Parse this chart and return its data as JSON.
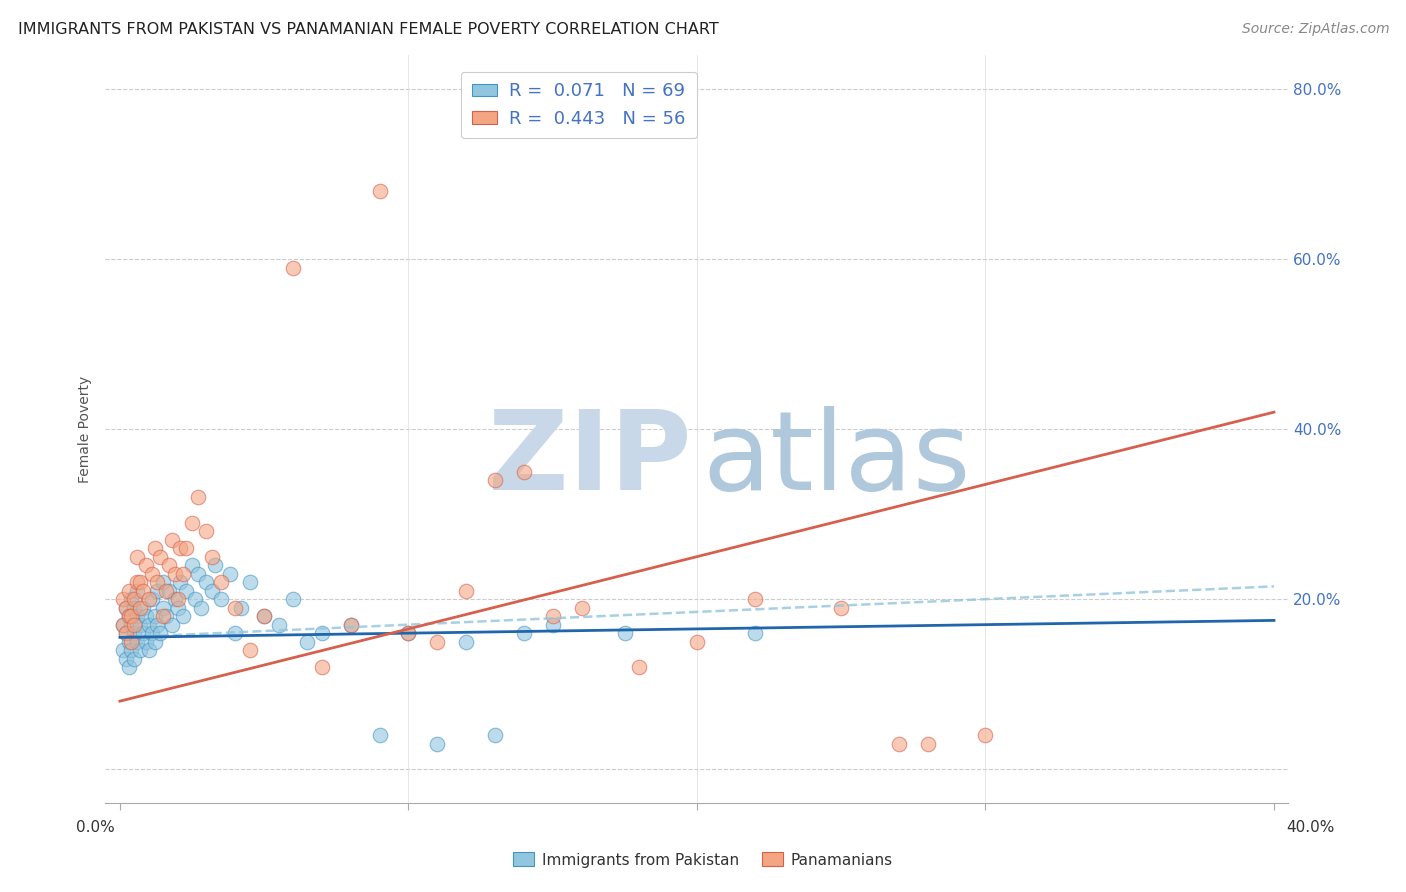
{
  "title": "IMMIGRANTS FROM PAKISTAN VS PANAMANIAN FEMALE POVERTY CORRELATION CHART",
  "source": "Source: ZipAtlas.com",
  "ylabel": "Female Poverty",
  "blue_color": "#92c5de",
  "blue_edge_color": "#4393c3",
  "pink_color": "#f4a582",
  "pink_edge_color": "#d6604d",
  "blue_line_color": "#2166ac",
  "pink_line_color": "#d6604d",
  "dash_line_color": "#92c5de",
  "watermark_zip_color": "#c8d8e8",
  "watermark_atlas_color": "#b0c8dc",
  "background_color": "#ffffff",
  "xlim": [
    -0.005,
    0.405
  ],
  "ylim": [
    -0.04,
    0.84
  ],
  "blue_r": 0.071,
  "blue_n": 69,
  "pink_r": 0.443,
  "pink_n": 56,
  "blue_scatter_x": [
    0.001,
    0.001,
    0.002,
    0.002,
    0.002,
    0.003,
    0.003,
    0.003,
    0.004,
    0.004,
    0.004,
    0.005,
    0.005,
    0.005,
    0.006,
    0.006,
    0.006,
    0.007,
    0.007,
    0.008,
    0.008,
    0.009,
    0.009,
    0.01,
    0.01,
    0.011,
    0.011,
    0.012,
    0.012,
    0.013,
    0.013,
    0.014,
    0.015,
    0.015,
    0.016,
    0.017,
    0.018,
    0.019,
    0.02,
    0.021,
    0.022,
    0.023,
    0.025,
    0.026,
    0.027,
    0.028,
    0.03,
    0.032,
    0.033,
    0.035,
    0.038,
    0.04,
    0.042,
    0.045,
    0.05,
    0.055,
    0.06,
    0.065,
    0.07,
    0.08,
    0.09,
    0.1,
    0.11,
    0.12,
    0.13,
    0.14,
    0.15,
    0.175,
    0.22
  ],
  "blue_scatter_y": [
    0.14,
    0.17,
    0.13,
    0.16,
    0.19,
    0.12,
    0.15,
    0.18,
    0.14,
    0.17,
    0.2,
    0.13,
    0.16,
    0.19,
    0.15,
    0.18,
    0.21,
    0.14,
    0.17,
    0.16,
    0.19,
    0.15,
    0.18,
    0.14,
    0.17,
    0.16,
    0.2,
    0.15,
    0.18,
    0.17,
    0.21,
    0.16,
    0.19,
    0.22,
    0.18,
    0.21,
    0.17,
    0.2,
    0.19,
    0.22,
    0.18,
    0.21,
    0.24,
    0.2,
    0.23,
    0.19,
    0.22,
    0.21,
    0.24,
    0.2,
    0.23,
    0.16,
    0.19,
    0.22,
    0.18,
    0.17,
    0.2,
    0.15,
    0.16,
    0.17,
    0.04,
    0.16,
    0.03,
    0.15,
    0.04,
    0.16,
    0.17,
    0.16,
    0.16
  ],
  "pink_scatter_x": [
    0.001,
    0.001,
    0.002,
    0.002,
    0.003,
    0.003,
    0.004,
    0.004,
    0.005,
    0.005,
    0.006,
    0.006,
    0.007,
    0.007,
    0.008,
    0.009,
    0.01,
    0.011,
    0.012,
    0.013,
    0.014,
    0.015,
    0.016,
    0.017,
    0.018,
    0.019,
    0.02,
    0.021,
    0.022,
    0.023,
    0.025,
    0.027,
    0.03,
    0.032,
    0.035,
    0.04,
    0.045,
    0.05,
    0.06,
    0.07,
    0.08,
    0.09,
    0.1,
    0.11,
    0.12,
    0.13,
    0.14,
    0.15,
    0.16,
    0.18,
    0.2,
    0.22,
    0.25,
    0.27,
    0.28,
    0.3
  ],
  "pink_scatter_y": [
    0.17,
    0.2,
    0.16,
    0.19,
    0.18,
    0.21,
    0.15,
    0.18,
    0.17,
    0.2,
    0.22,
    0.25,
    0.19,
    0.22,
    0.21,
    0.24,
    0.2,
    0.23,
    0.26,
    0.22,
    0.25,
    0.18,
    0.21,
    0.24,
    0.27,
    0.23,
    0.2,
    0.26,
    0.23,
    0.26,
    0.29,
    0.32,
    0.28,
    0.25,
    0.22,
    0.19,
    0.14,
    0.18,
    0.59,
    0.12,
    0.17,
    0.68,
    0.16,
    0.15,
    0.21,
    0.34,
    0.35,
    0.18,
    0.19,
    0.12,
    0.15,
    0.2,
    0.19,
    0.03,
    0.03,
    0.04
  ],
  "blue_line_x": [
    0.0,
    0.4
  ],
  "blue_line_y": [
    0.155,
    0.175
  ],
  "pink_line_x": [
    0.0,
    0.4
  ],
  "pink_line_y": [
    0.08,
    0.42
  ],
  "dash_line_x": [
    0.0,
    0.4
  ],
  "dash_line_y": [
    0.155,
    0.215
  ]
}
